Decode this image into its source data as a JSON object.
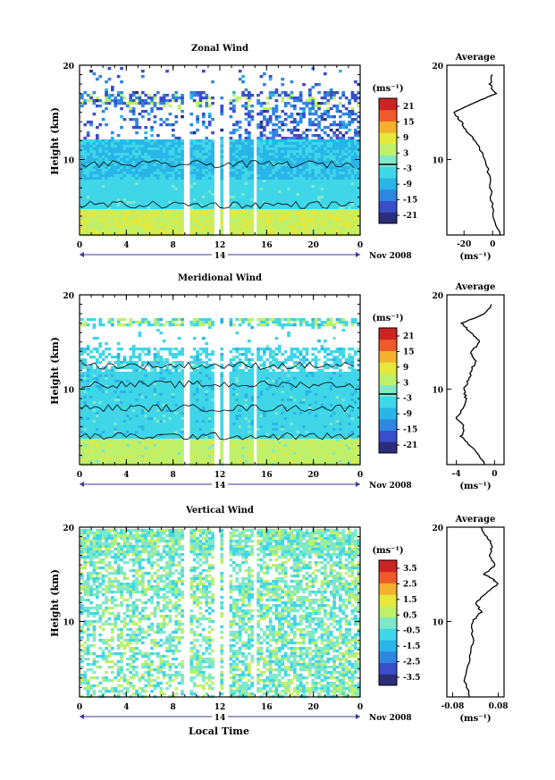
{
  "figure": {
    "x_label": "Local Time",
    "date_label": "Nov 2008",
    "day_label": "14"
  },
  "chart_data": [
    {
      "type": "heatmap",
      "title": "Zonal Wind",
      "ylabel": "Height (km)",
      "xlabel": "Local Time",
      "x_ticks": [
        "0",
        "4",
        "8",
        "12",
        "16",
        "20",
        "0"
      ],
      "xlim": [
        0,
        24
      ],
      "ylim": [
        2,
        20
      ],
      "y_ticks": [
        "20",
        "10"
      ],
      "colorbar": {
        "label": "(ms⁻¹)",
        "range": [
          -24,
          24
        ],
        "ticks": [
          "21",
          "15",
          "9",
          "3",
          "-3",
          "-9",
          "-15",
          "-21"
        ],
        "zero_contour": true
      },
      "data_gaps_hours": [
        [
          8.7,
          9.2
        ],
        [
          11.5,
          11.8
        ],
        [
          12.2,
          12.6
        ],
        [
          14.8,
          15.1
        ]
      ],
      "profile": {
        "title": "Average",
        "xlabel": "(ms⁻¹)",
        "x_ticks": [
          "-20",
          "0"
        ],
        "xlim": [
          -32,
          8
        ],
        "y": [
          2,
          4,
          6,
          8,
          10,
          12,
          13,
          14,
          15,
          16,
          17,
          18,
          19
        ],
        "x": [
          5,
          1,
          -1,
          -2,
          -5,
          -12,
          -18,
          -22,
          -27,
          -13,
          2,
          -2,
          0
        ]
      }
    },
    {
      "type": "heatmap",
      "title": "Meridional Wind",
      "ylabel": "Height (km)",
      "xlabel": "Local Time",
      "x_ticks": [
        "0",
        "4",
        "8",
        "12",
        "16",
        "20",
        "0"
      ],
      "xlim": [
        0,
        24
      ],
      "ylim": [
        2,
        20
      ],
      "y_ticks": [
        "20",
        "10"
      ],
      "colorbar": {
        "label": "(ms⁻¹)",
        "range": [
          -24,
          24
        ],
        "ticks": [
          "21",
          "15",
          "9",
          "3",
          "-3",
          "-9",
          "-15",
          "-21"
        ],
        "zero_contour": true
      },
      "data_gaps_hours": [
        [
          8.7,
          9.2
        ],
        [
          11.5,
          11.8
        ],
        [
          12.2,
          12.6
        ],
        [
          14.8,
          15.1
        ]
      ],
      "profile": {
        "title": "Average",
        "xlabel": "(ms⁻¹)",
        "x_ticks": [
          "-4",
          "0"
        ],
        "xlim": [
          -5,
          1
        ],
        "y": [
          2,
          4,
          5,
          6,
          7,
          8,
          9,
          10,
          11,
          12,
          13,
          14,
          15,
          16,
          17,
          18,
          19
        ],
        "x": [
          -1.0,
          -2.5,
          -3.5,
          -3.2,
          -4.0,
          -3.3,
          -3.0,
          -3.2,
          -2.7,
          -2.4,
          -2.0,
          -2.5,
          -1.5,
          -2.5,
          -3.5,
          -1.0,
          -0.3
        ]
      }
    },
    {
      "type": "heatmap",
      "title": "Vertical Wind",
      "ylabel": "Height (km)",
      "xlabel": "Local Time",
      "x_ticks": [
        "0",
        "4",
        "8",
        "12",
        "16",
        "20",
        "0"
      ],
      "xlim": [
        0,
        24
      ],
      "ylim": [
        2,
        20
      ],
      "y_ticks": [
        "20",
        "10"
      ],
      "colorbar": {
        "label": "(ms⁻¹)",
        "range": [
          -4,
          4
        ],
        "ticks": [
          "3.5",
          "2.5",
          "1.5",
          "0.5",
          "-0.5",
          "-1.5",
          "-2.5",
          "-3.5"
        ],
        "zero_contour": false
      },
      "data_gaps_hours": [
        [
          8.7,
          9.2
        ],
        [
          11.5,
          11.8
        ],
        [
          12.2,
          12.6
        ],
        [
          14.8,
          15.1
        ]
      ],
      "profile": {
        "title": "Average",
        "xlabel": "(ms⁻¹)",
        "x_ticks": [
          "-0.08",
          "0.08"
        ],
        "xlim": [
          -0.1,
          0.1
        ],
        "y": [
          2,
          4,
          6,
          8,
          10,
          11,
          12,
          13,
          14,
          14.5,
          15,
          16,
          17,
          18,
          19,
          20
        ],
        "x": [
          -0.02,
          -0.04,
          -0.02,
          -0.01,
          -0.01,
          0.02,
          0.0,
          0.04,
          0.08,
          0.06,
          0.03,
          0.07,
          0.05,
          0.06,
          0.04,
          0.02
        ]
      }
    }
  ]
}
